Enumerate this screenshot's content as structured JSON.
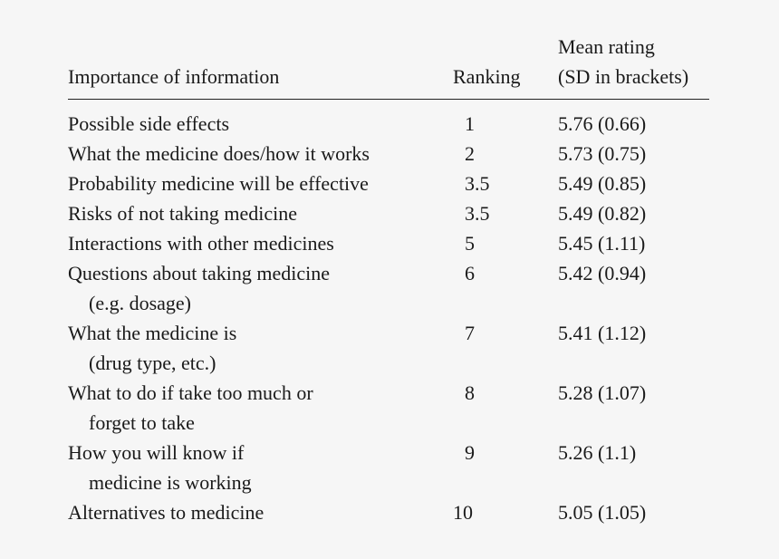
{
  "table": {
    "headers": {
      "importance": "Importance of information",
      "ranking": "Ranking",
      "mean_line1": "Mean rating",
      "mean_line2": "(SD in brackets)"
    },
    "rows": [
      {
        "label_l1": "Possible side effects",
        "label_l2": "",
        "rank": "1",
        "mean": "5.76 (0.66)"
      },
      {
        "label_l1": "What the medicine does/how it works",
        "label_l2": "",
        "rank": "2",
        "mean": "5.73 (0.75)"
      },
      {
        "label_l1": "Probability medicine will be effective",
        "label_l2": "",
        "rank": "3.5",
        "mean": "5.49 (0.85)"
      },
      {
        "label_l1": "Risks of not taking medicine",
        "label_l2": "",
        "rank": "3.5",
        "mean": "5.49 (0.82)"
      },
      {
        "label_l1": "Interactions with other medicines",
        "label_l2": "",
        "rank": "5",
        "mean": "5.45 (1.11)"
      },
      {
        "label_l1": "Questions about taking medicine",
        "label_l2": "(e.g. dosage)",
        "rank": "6",
        "mean": "5.42 (0.94)"
      },
      {
        "label_l1": "What the medicine is",
        "label_l2": "(drug type, etc.)",
        "rank": "7",
        "mean": "5.41 (1.12)"
      },
      {
        "label_l1": "What to do if take too much or",
        "label_l2": "forget to take",
        "rank": "8",
        "mean": "5.28 (1.07)"
      },
      {
        "label_l1": "How you will know if",
        "label_l2": "medicine is working",
        "rank": "9",
        "mean": "5.26 (1.1)"
      },
      {
        "label_l1": "Alternatives to medicine",
        "label_l2": "",
        "rank": "10",
        "mean": "5.05 (1.05)"
      }
    ]
  }
}
